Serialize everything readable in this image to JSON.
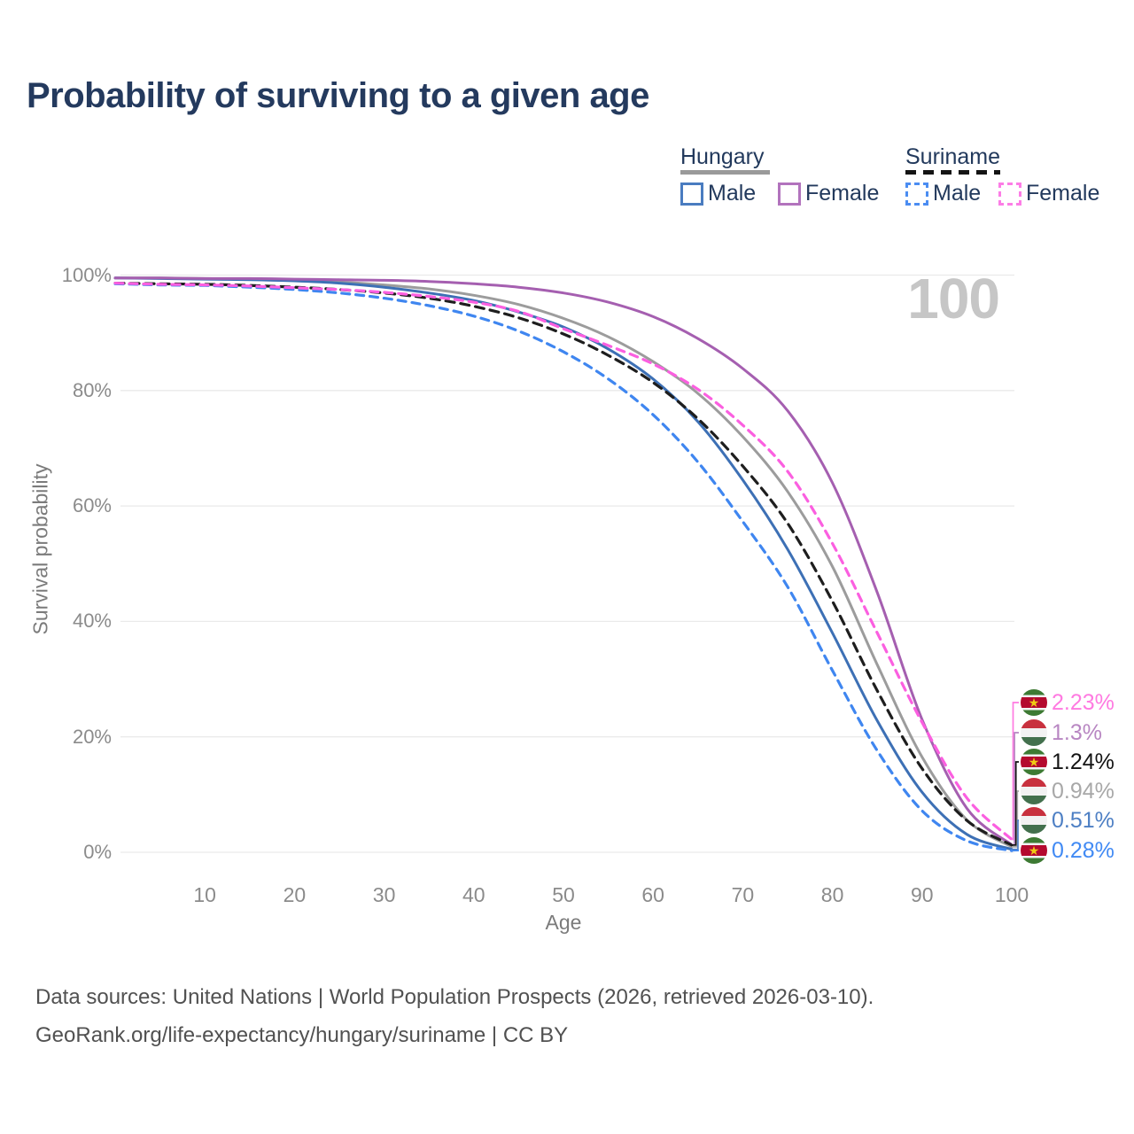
{
  "title": "Probability of surviving to a given age",
  "watermark": "100",
  "legend": {
    "groups": [
      {
        "name": "Hungary",
        "line_style": "solid",
        "underline_color": "#9a9a9a",
        "items": [
          {
            "label": "Male",
            "swatch_color": "#4a7cc0",
            "swatch_style": "solid"
          },
          {
            "label": "Female",
            "swatch_color": "#b273bd",
            "swatch_style": "solid"
          }
        ]
      },
      {
        "name": "Suriname",
        "line_style": "dashed",
        "underline_color": "#141414",
        "items": [
          {
            "label": "Male",
            "swatch_color": "#4b8df2",
            "swatch_style": "dashed"
          },
          {
            "label": "Female",
            "swatch_color": "#fc7de6",
            "swatch_style": "dashed"
          }
        ]
      }
    ]
  },
  "chart_data": {
    "type": "line",
    "title": "Probability of surviving to a given age",
    "xlabel": "Age",
    "ylabel": "Survival probability",
    "xlim": [
      0,
      100
    ],
    "ylim": [
      0,
      100
    ],
    "grid": "horizontal",
    "x_ticks": [
      10,
      20,
      30,
      40,
      50,
      60,
      70,
      80,
      90,
      100
    ],
    "y_ticks": [
      0,
      20,
      40,
      60,
      80,
      100
    ],
    "y_tick_labels": [
      "0%",
      "20%",
      "40%",
      "60%",
      "80%",
      "100%"
    ],
    "x": [
      0,
      5,
      10,
      15,
      20,
      25,
      30,
      35,
      40,
      45,
      50,
      55,
      60,
      65,
      70,
      75,
      80,
      85,
      90,
      95,
      100
    ],
    "series": [
      {
        "id": "hungary_male",
        "name": "Hungary Male",
        "color": "#3d70b5",
        "dash": null,
        "values": [
          99.5,
          99.4,
          99.3,
          99.2,
          99.0,
          98.6,
          97.9,
          96.9,
          95.6,
          93.6,
          91.0,
          87.2,
          82.0,
          74.6,
          64.5,
          52.5,
          38.0,
          22.8,
          10.4,
          3.1,
          0.51
        ]
      },
      {
        "id": "hungary_female",
        "name": "Hungary Female",
        "color": "#a55fb0",
        "dash": null,
        "values": [
          99.5,
          99.5,
          99.4,
          99.4,
          99.3,
          99.2,
          99.1,
          98.9,
          98.5,
          97.9,
          96.9,
          95.3,
          92.8,
          89.0,
          83.8,
          76.5,
          64.0,
          45.0,
          23.0,
          7.6,
          1.3
        ]
      },
      {
        "id": "hungary_total",
        "name": "Hungary (both sexes)",
        "color": "#9c9c9c",
        "dash": null,
        "values": [
          99.5,
          99.5,
          99.4,
          99.3,
          99.1,
          98.8,
          98.3,
          97.6,
          96.5,
          94.9,
          92.5,
          89.3,
          85.0,
          79.5,
          72.0,
          62.5,
          49.5,
          32.5,
          16.5,
          5.6,
          0.94
        ]
      },
      {
        "id": "suriname_male",
        "name": "Suriname Male",
        "color": "#3f86f0",
        "dash": "9 7",
        "values": [
          98.5,
          98.3,
          98.2,
          97.9,
          97.5,
          96.9,
          96.0,
          94.7,
          92.9,
          90.3,
          86.7,
          82.0,
          75.8,
          67.6,
          57.3,
          46.0,
          31.5,
          17.6,
          7.2,
          2.0,
          0.28
        ]
      },
      {
        "id": "suriname_female",
        "name": "Suriname Female",
        "color": "#fb5fe0",
        "dash": "9 7",
        "values": [
          98.6,
          98.4,
          98.3,
          98.1,
          97.8,
          97.5,
          97.0,
          96.3,
          95.3,
          93.7,
          90.7,
          87.8,
          84.6,
          80.2,
          74.0,
          66.0,
          53.5,
          38.0,
          22.5,
          9.4,
          2.23
        ]
      },
      {
        "id": "suriname_total",
        "name": "Suriname (both sexes)",
        "color": "#1e1e1e",
        "dash": "10 7",
        "values": [
          98.6,
          98.5,
          98.4,
          98.2,
          97.9,
          97.5,
          96.9,
          96.0,
          94.6,
          92.6,
          89.8,
          86.1,
          81.4,
          75.1,
          66.9,
          57.0,
          43.5,
          28.0,
          14.5,
          5.5,
          1.24
        ]
      }
    ],
    "end_labels": [
      {
        "text": "2.23%",
        "value_pct": 2.23,
        "series": "suriname_female",
        "flag": "suriname",
        "color": "#ff7ae1"
      },
      {
        "text": "1.3%",
        "value_pct": 1.3,
        "series": "hungary_female",
        "flag": "hungary",
        "color": "#b886c2"
      },
      {
        "text": "1.24%",
        "value_pct": 1.24,
        "series": "suriname_total",
        "flag": "suriname",
        "color": "#141414"
      },
      {
        "text": "0.94%",
        "value_pct": 0.94,
        "series": "hungary_total",
        "flag": "hungary",
        "color": "#a8a8a8"
      },
      {
        "text": "0.51%",
        "value_pct": 0.51,
        "series": "hungary_male",
        "flag": "hungary",
        "color": "#4d7fc4"
      },
      {
        "text": "0.28%",
        "value_pct": 0.28,
        "series": "suriname_male",
        "flag": "suriname",
        "color": "#418af4"
      }
    ]
  },
  "source": {
    "line1": "Data sources: United Nations | World Population Prospects (2026, retrieved 2026-03-10).",
    "line2": "GeoRank.org/life-expectancy/hungary/suriname | CC BY"
  }
}
